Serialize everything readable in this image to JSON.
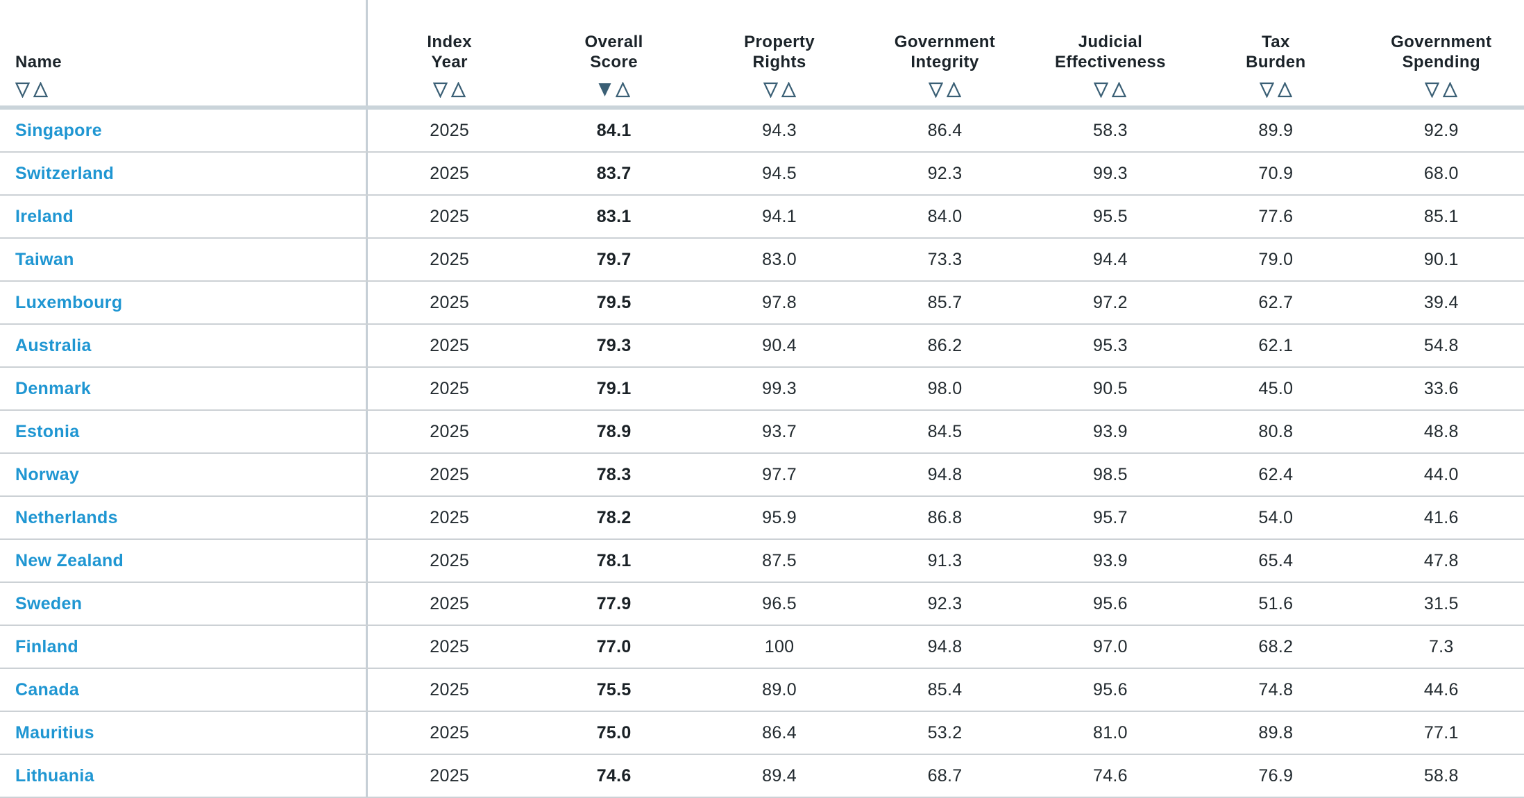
{
  "table": {
    "columns": [
      {
        "key": "name",
        "lines": [
          "Name"
        ],
        "sort": "none"
      },
      {
        "key": "index_year",
        "lines": [
          "Index",
          "Year"
        ],
        "sort": "none"
      },
      {
        "key": "overall_score",
        "lines": [
          "Overall",
          "Score"
        ],
        "sort": "desc"
      },
      {
        "key": "property_rights",
        "lines": [
          "Property",
          "Rights"
        ],
        "sort": "none"
      },
      {
        "key": "government_integrity",
        "lines": [
          "Government",
          "Integrity"
        ],
        "sort": "none"
      },
      {
        "key": "judicial_effectiveness",
        "lines": [
          "Judicial",
          "Effectiveness"
        ],
        "sort": "none"
      },
      {
        "key": "tax_burden",
        "lines": [
          "Tax",
          "Burden"
        ],
        "sort": "none"
      },
      {
        "key": "government_spending",
        "lines": [
          "Government",
          "Spending"
        ],
        "sort": "none"
      }
    ],
    "rows": [
      {
        "name": "Singapore",
        "values": [
          "2025",
          "84.1",
          "94.3",
          "86.4",
          "58.3",
          "89.9",
          "92.9"
        ]
      },
      {
        "name": "Switzerland",
        "values": [
          "2025",
          "83.7",
          "94.5",
          "92.3",
          "99.3",
          "70.9",
          "68.0"
        ]
      },
      {
        "name": "Ireland",
        "values": [
          "2025",
          "83.1",
          "94.1",
          "84.0",
          "95.5",
          "77.6",
          "85.1"
        ]
      },
      {
        "name": "Taiwan",
        "values": [
          "2025",
          "79.7",
          "83.0",
          "73.3",
          "94.4",
          "79.0",
          "90.1"
        ]
      },
      {
        "name": "Luxembourg",
        "values": [
          "2025",
          "79.5",
          "97.8",
          "85.7",
          "97.2",
          "62.7",
          "39.4"
        ]
      },
      {
        "name": "Australia",
        "values": [
          "2025",
          "79.3",
          "90.4",
          "86.2",
          "95.3",
          "62.1",
          "54.8"
        ]
      },
      {
        "name": "Denmark",
        "values": [
          "2025",
          "79.1",
          "99.3",
          "98.0",
          "90.5",
          "45.0",
          "33.6"
        ]
      },
      {
        "name": "Estonia",
        "values": [
          "2025",
          "78.9",
          "93.7",
          "84.5",
          "93.9",
          "80.8",
          "48.8"
        ]
      },
      {
        "name": "Norway",
        "values": [
          "2025",
          "78.3",
          "97.7",
          "94.8",
          "98.5",
          "62.4",
          "44.0"
        ]
      },
      {
        "name": "Netherlands",
        "values": [
          "2025",
          "78.2",
          "95.9",
          "86.8",
          "95.7",
          "54.0",
          "41.6"
        ]
      },
      {
        "name": "New Zealand",
        "values": [
          "2025",
          "78.1",
          "87.5",
          "91.3",
          "93.9",
          "65.4",
          "47.8"
        ]
      },
      {
        "name": "Sweden",
        "values": [
          "2025",
          "77.9",
          "96.5",
          "92.3",
          "95.6",
          "51.6",
          "31.5"
        ]
      },
      {
        "name": "Finland",
        "values": [
          "2025",
          "77.0",
          "100",
          "94.8",
          "97.0",
          "68.2",
          "7.3"
        ]
      },
      {
        "name": "Canada",
        "values": [
          "2025",
          "75.5",
          "89.0",
          "85.4",
          "95.6",
          "74.8",
          "44.6"
        ]
      },
      {
        "name": "Mauritius",
        "values": [
          "2025",
          "75.0",
          "86.4",
          "53.2",
          "81.0",
          "89.8",
          "77.1"
        ]
      },
      {
        "name": "Lithuania",
        "values": [
          "2025",
          "74.6",
          "89.4",
          "68.7",
          "74.6",
          "76.9",
          "58.8"
        ]
      }
    ]
  },
  "icons": {
    "sort_descending": "▼",
    "sort_ascending": "△",
    "sort_descending_outline": "▽"
  },
  "colors": {
    "link_blue": "#1f96d2",
    "sort_icon": "#3a5f75",
    "header_text": "#1b2329",
    "body_text": "#222a2f",
    "overall_text": "#1a2126",
    "row_divider": "#ccd1d5",
    "header_band": "#cad4da",
    "column_divider": "#c6cfd6"
  }
}
